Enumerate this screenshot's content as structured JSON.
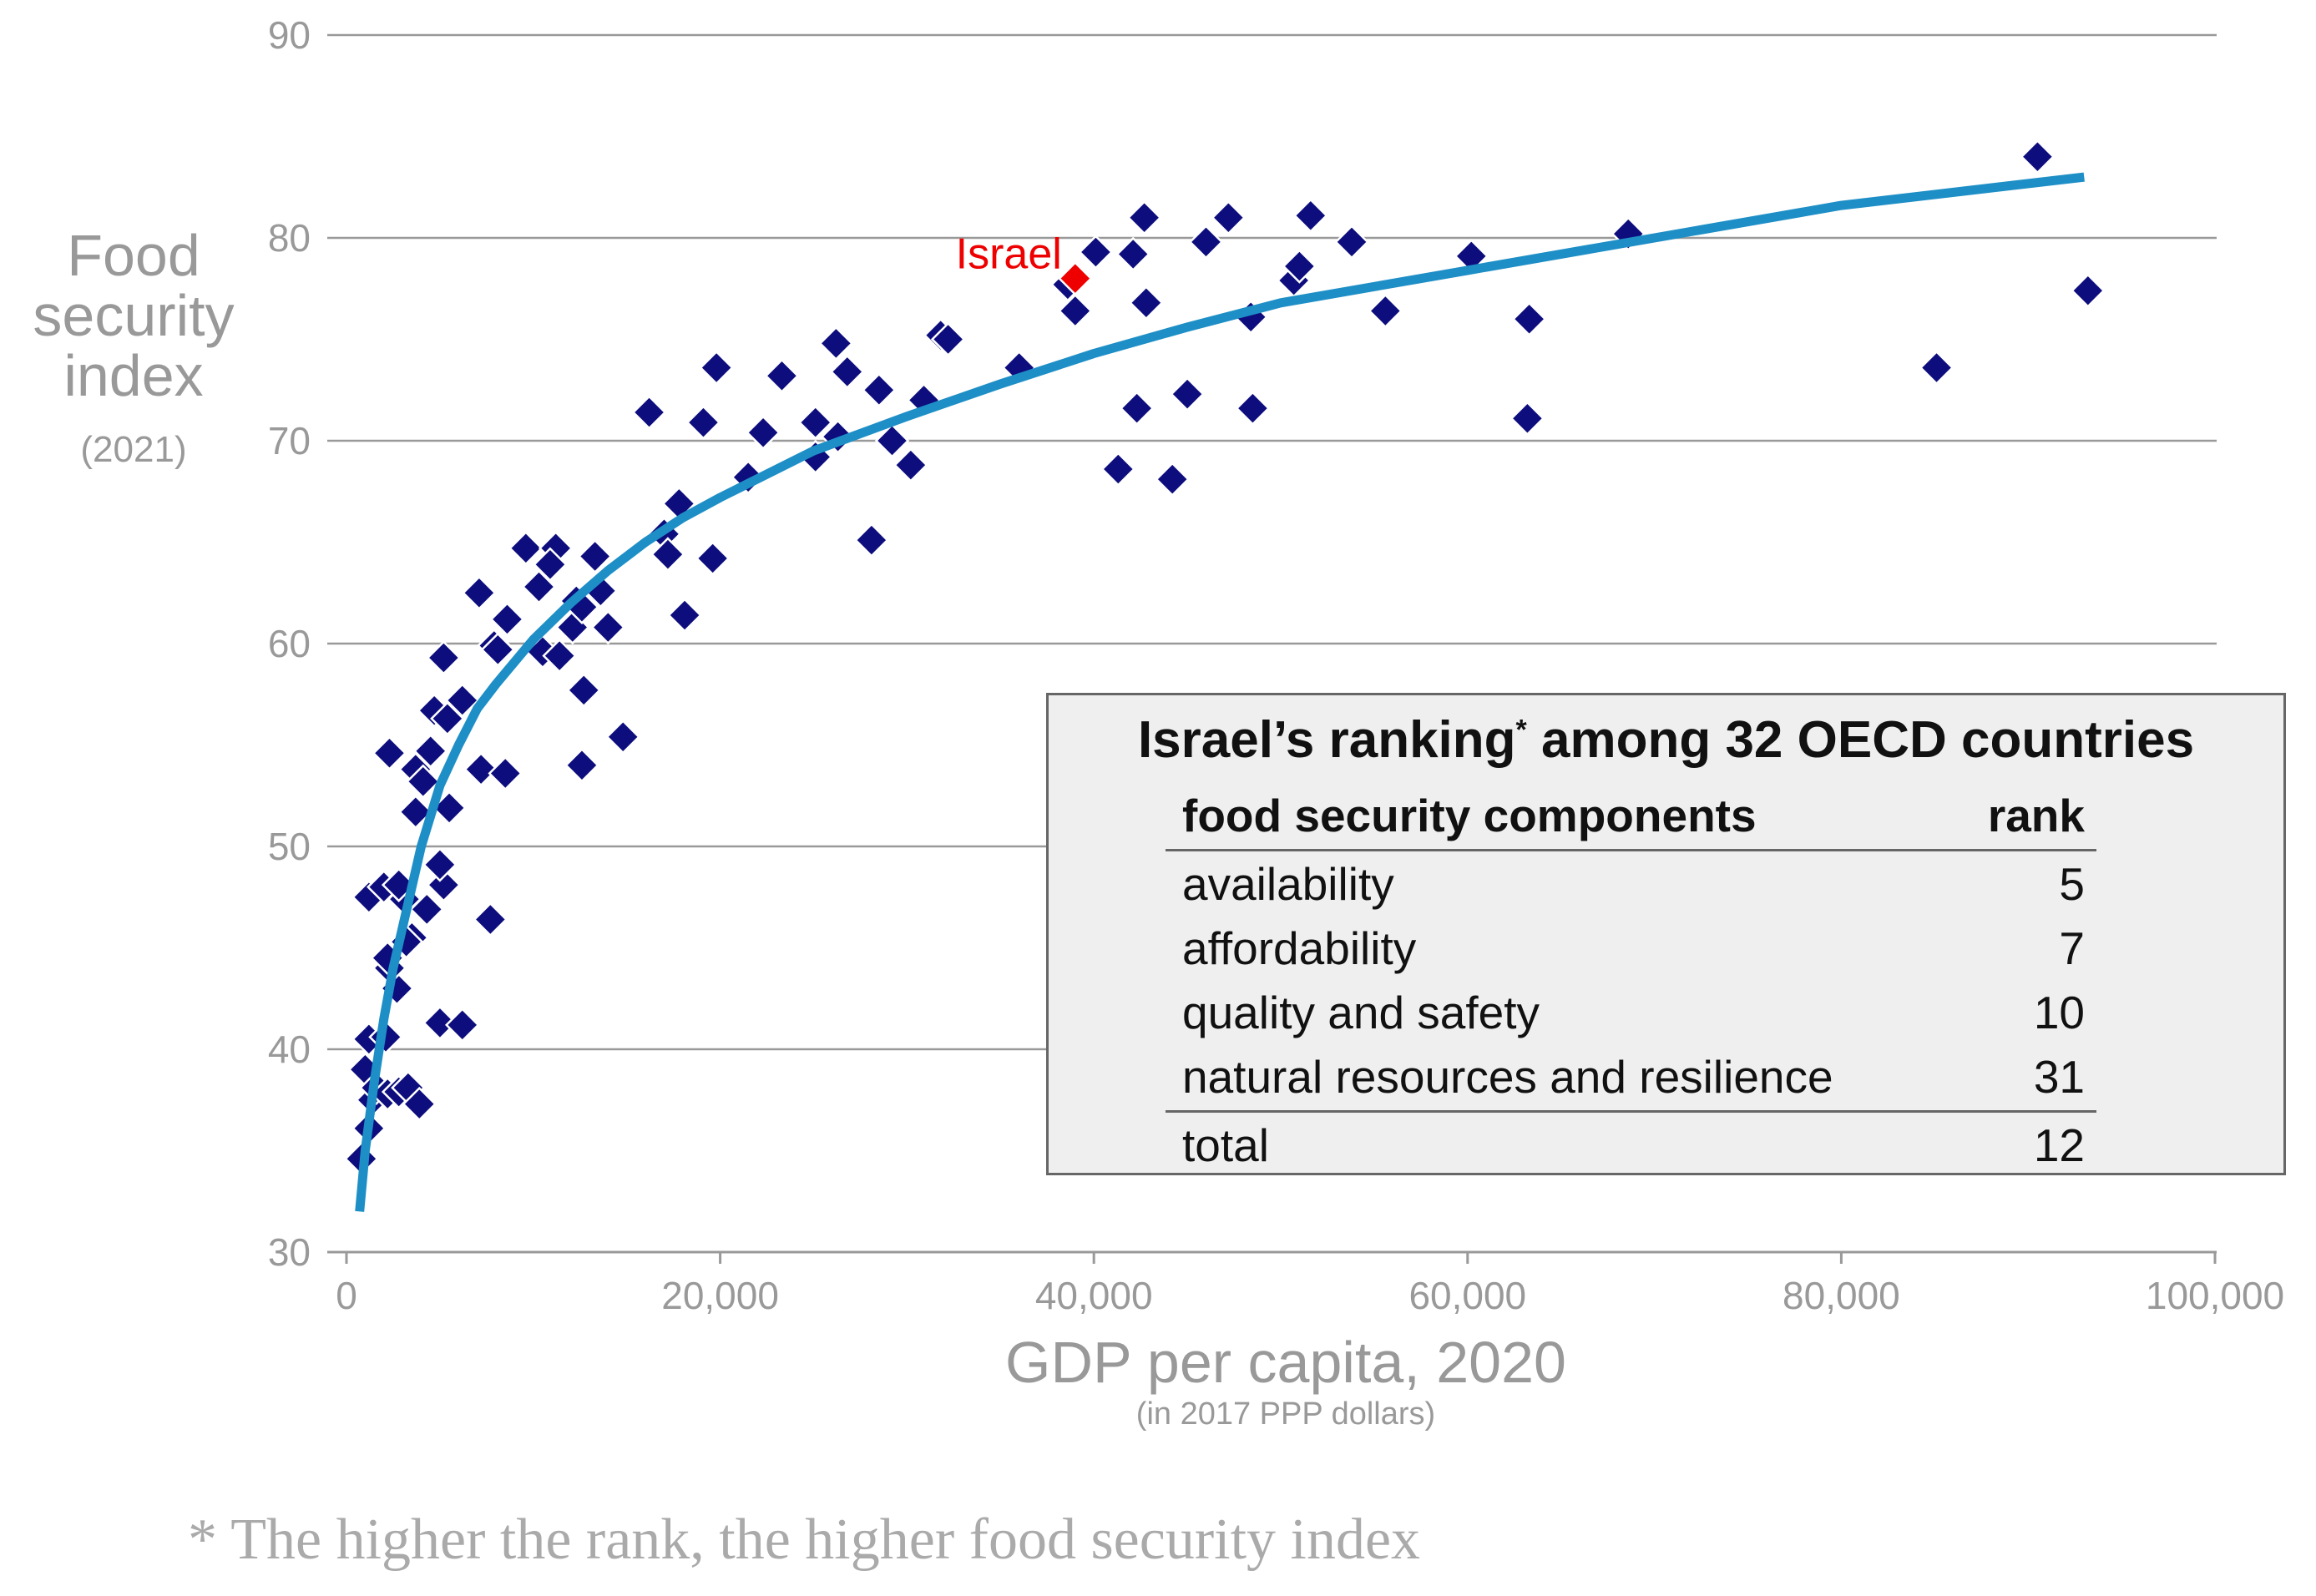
{
  "chart_data": {
    "type": "scatter",
    "title": "",
    "xlabel": "GDP per capita, 2020",
    "xlabel_sub": "(in 2017 PPP dollars)",
    "ylabel": "Food\nsecurity\nindex",
    "ylabel_sub": "(2021)",
    "xlim": [
      0,
      100000
    ],
    "ylim": [
      30,
      90
    ],
    "x_ticks": [
      0,
      20000,
      40000,
      60000,
      80000,
      100000
    ],
    "x_tick_labels": [
      "0",
      "20,000",
      "40,000",
      "60,000",
      "80,000",
      "100,000"
    ],
    "y_ticks": [
      30,
      40,
      50,
      60,
      70,
      80,
      90
    ],
    "y_tick_labels": [
      "30",
      "40",
      "50",
      "60",
      "70",
      "80",
      "90"
    ],
    "grid": "horizontal",
    "points": [
      [
        800,
        34.6
      ],
      [
        1200,
        36.1
      ],
      [
        1000,
        39
      ],
      [
        1400,
        37.5
      ],
      [
        1600,
        38.1
      ],
      [
        2200,
        37.8
      ],
      [
        2800,
        37.9
      ],
      [
        3300,
        38.1
      ],
      [
        3900,
        37.3
      ],
      [
        1200,
        40.5
      ],
      [
        2100,
        40.6
      ],
      [
        2700,
        43
      ],
      [
        2300,
        44
      ],
      [
        2200,
        44.5
      ],
      [
        3500,
        45.5
      ],
      [
        3200,
        45.3
      ],
      [
        4300,
        46.9
      ],
      [
        3100,
        47.4
      ],
      [
        1200,
        47.5
      ],
      [
        2000,
        48
      ],
      [
        2800,
        48.1
      ],
      [
        5200,
        48.1
      ],
      [
        5000,
        49.1
      ],
      [
        7700,
        46.4
      ],
      [
        5000,
        41.3
      ],
      [
        6200,
        41.2
      ],
      [
        3700,
        51.7
      ],
      [
        5500,
        51.9
      ],
      [
        2300,
        54.6
      ],
      [
        3700,
        53.8
      ],
      [
        4100,
        53.2
      ],
      [
        4500,
        54.7
      ],
      [
        7200,
        53.8
      ],
      [
        8500,
        53.6
      ],
      [
        4700,
        56.7
      ],
      [
        5400,
        56.3
      ],
      [
        6200,
        57.2
      ],
      [
        5200,
        59.3
      ],
      [
        7900,
        59.9
      ],
      [
        8100,
        59.7
      ],
      [
        8600,
        61.2
      ],
      [
        7100,
        62.5
      ],
      [
        9600,
        64.7
      ],
      [
        10300,
        62.8
      ],
      [
        10500,
        59.6
      ],
      [
        11200,
        64.7
      ],
      [
        10900,
        63.9
      ],
      [
        11400,
        59.4
      ],
      [
        12100,
        60.8
      ],
      [
        12300,
        62.1
      ],
      [
        12600,
        61.8
      ],
      [
        12700,
        57.7
      ],
      [
        12600,
        54
      ],
      [
        13300,
        64.3
      ],
      [
        13600,
        62.6
      ],
      [
        14000,
        60.8
      ],
      [
        14800,
        55.4
      ],
      [
        16200,
        71.4
      ],
      [
        17000,
        65.4
      ],
      [
        17200,
        64.4
      ],
      [
        17800,
        66.9
      ],
      [
        18100,
        61.4
      ],
      [
        19100,
        70.9
      ],
      [
        19600,
        64.2
      ],
      [
        19800,
        73.6
      ],
      [
        21500,
        68.2
      ],
      [
        22300,
        70.4
      ],
      [
        23300,
        73.2
      ],
      [
        25100,
        70.9
      ],
      [
        25100,
        69.2
      ],
      [
        26200,
        74.8
      ],
      [
        26300,
        70.2
      ],
      [
        26800,
        73.4
      ],
      [
        28100,
        65.1
      ],
      [
        28500,
        72.5
      ],
      [
        29200,
        70
      ],
      [
        30200,
        68.8
      ],
      [
        30900,
        72
      ],
      [
        31800,
        75.2
      ],
      [
        32200,
        75
      ],
      [
        36000,
        73.6
      ],
      [
        38600,
        77.7
      ],
      [
        39000,
        76.4
      ],
      [
        40100,
        79.3
      ],
      [
        41300,
        68.6
      ],
      [
        42100,
        79.2
      ],
      [
        42300,
        71.6
      ],
      [
        42700,
        81
      ],
      [
        42800,
        76.8
      ],
      [
        44200,
        68.1
      ],
      [
        45000,
        72.3
      ],
      [
        46000,
        79.8
      ],
      [
        47200,
        81
      ],
      [
        48400,
        76.1
      ],
      [
        48500,
        71.6
      ],
      [
        50700,
        77.9
      ],
      [
        51000,
        78.6
      ],
      [
        51600,
        81.1
      ],
      [
        53800,
        79.8
      ],
      [
        55600,
        76.4
      ],
      [
        60200,
        79.1
      ],
      [
        63300,
        76
      ],
      [
        63200,
        71.1
      ],
      [
        68600,
        80.2
      ],
      [
        85100,
        73.6
      ],
      [
        90500,
        84
      ],
      [
        93200,
        77.4
      ]
    ],
    "highlight": {
      "label": "Israel",
      "x": 39000,
      "y": 78,
      "color": "#ee0000"
    },
    "trendline": {
      "x": [
        700,
        1000,
        1500,
        2000,
        2500,
        3000,
        3500,
        4000,
        5000,
        6000,
        7000,
        8000,
        10000,
        12000,
        14000,
        16000,
        18000,
        20000,
        25000,
        30000,
        35000,
        40000,
        45000,
        50000,
        60000,
        70000,
        80000,
        93000
      ],
      "y": [
        32,
        35,
        38.5,
        41.5,
        44,
        46,
        48,
        50,
        53,
        55,
        56.8,
        58,
        60.2,
        62,
        63.6,
        65,
        66.2,
        67.2,
        69.5,
        71.2,
        72.8,
        74.3,
        75.6,
        76.8,
        78.4,
        80,
        81.6,
        83
      ]
    },
    "colors": {
      "points": "#0d0d7d",
      "trendline": "#1e8fc6",
      "highlight": "#ee0000",
      "grid": "#999999",
      "ticks": "#999999"
    }
  },
  "ranking_box": {
    "title": "Israel’s ranking",
    "title_star": "*",
    "title_rest": " among 32 OECD countries",
    "col_component": "food security components",
    "col_rank": "rank",
    "rows": [
      {
        "component": "availability",
        "rank": "5"
      },
      {
        "component": "affordability",
        "rank": "7"
      },
      {
        "component": "quality and safety",
        "rank": "10"
      },
      {
        "component": "natural resources and resilience",
        "rank": "31"
      }
    ],
    "total": {
      "component": "total",
      "rank": "12"
    }
  },
  "footnote": "* The higher the rank, the higher food security index"
}
